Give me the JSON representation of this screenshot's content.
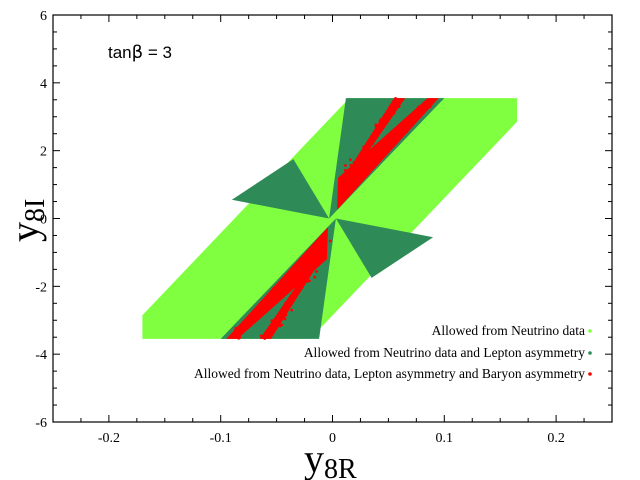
{
  "chart_data": {
    "type": "scatter",
    "title": "",
    "annotation": "tanβ = 3",
    "annotation_base": "tan",
    "annotation_symbol": "β",
    "annotation_rest": " = 3",
    "xlabel_main": "y",
    "xlabel_sub": "8R",
    "ylabel_main": "y",
    "ylabel_sub": "8I",
    "xlim": [
      -0.25,
      0.25
    ],
    "ylim": [
      -6,
      6
    ],
    "x_ticks": [
      "-0.2",
      "-0.1",
      "0",
      "0.1",
      "0.2"
    ],
    "x_tick_values": [
      -0.2,
      -0.1,
      0,
      0.1,
      0.2
    ],
    "y_ticks": [
      "-6",
      "-4",
      "-2",
      "0",
      "2",
      "4",
      "6"
    ],
    "y_tick_values": [
      -6,
      -4,
      -2,
      0,
      2,
      4,
      6
    ],
    "grid": false,
    "legend_position": "bottom-right",
    "colors": {
      "neutrino": "#80ff40",
      "lepton": "#2e8b57",
      "baryon": "#ff0000"
    },
    "series": [
      {
        "name": "Allowed from Neutrino data",
        "color": "#80ff40",
        "region": [
          [
            -0.17,
            -3.55
          ],
          [
            -0.17,
            -2.85
          ],
          [
            0.015,
            3.55
          ],
          [
            0.165,
            3.55
          ],
          [
            0.165,
            2.85
          ],
          [
            -0.02,
            -3.55
          ]
        ]
      },
      {
        "name": "Allowed from Neutrino data and Lepton asymmetry",
        "color": "#2e8b57",
        "regions": [
          [
            [
              -0.003,
              0.0
            ],
            [
              0.012,
              3.55
            ],
            [
              0.1,
              3.55
            ]
          ],
          [
            [
              0.003,
              0.0
            ],
            [
              -0.1,
              -3.55
            ],
            [
              -0.012,
              -3.55
            ]
          ],
          [
            [
              -0.003,
              0.0
            ],
            [
              -0.09,
              0.55
            ],
            [
              -0.035,
              1.75
            ]
          ],
          [
            [
              0.003,
              0.0
            ],
            [
              0.09,
              -0.55
            ],
            [
              0.035,
              -1.75
            ]
          ]
        ]
      },
      {
        "name": "Allowed from Neutrino data, Lepton asymmetry and Baryon asymmetry",
        "color": "#ff0000",
        "regions": [
          [
            [
              0.004,
              0.25
            ],
            [
              0.005,
              1.2
            ],
            [
              0.085,
              3.55
            ],
            [
              0.095,
              3.55
            ]
          ],
          [
            [
              0.012,
              1.3
            ],
            [
              0.055,
              3.55
            ],
            [
              0.065,
              3.55
            ],
            [
              0.02,
              1.4
            ]
          ],
          [
            [
              -0.004,
              -0.25
            ],
            [
              -0.005,
              -1.2
            ],
            [
              -0.085,
              -3.55
            ],
            [
              -0.095,
              -3.55
            ]
          ],
          [
            [
              -0.012,
              -1.3
            ],
            [
              -0.055,
              -3.55
            ],
            [
              -0.065,
              -3.55
            ],
            [
              -0.02,
              -1.4
            ]
          ]
        ]
      }
    ]
  }
}
